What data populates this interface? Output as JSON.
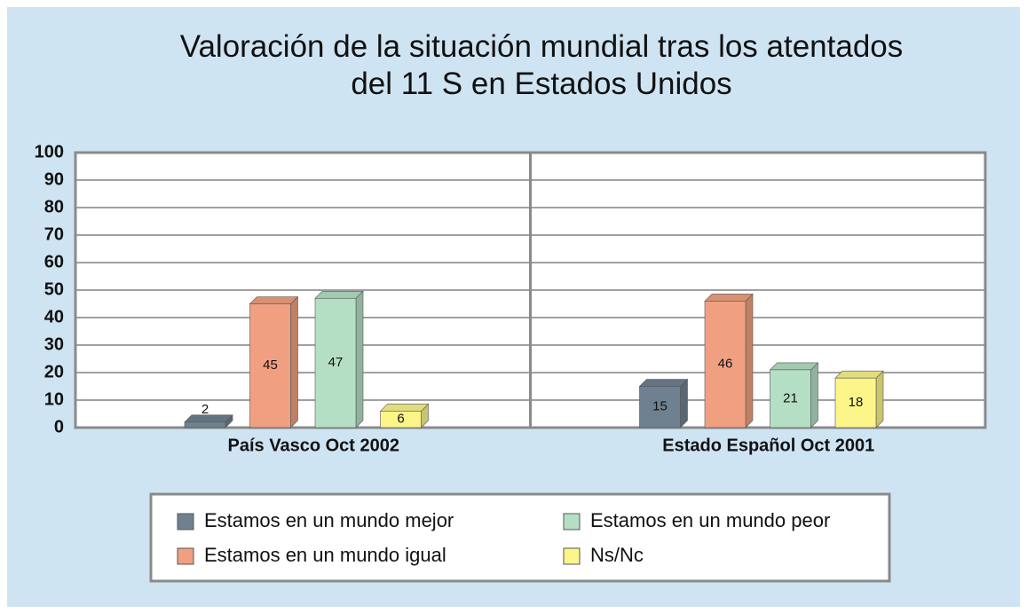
{
  "chart_data": {
    "type": "bar",
    "title": "Valoración de la situación mundial tras los atentados del 11 S en Estados Unidos",
    "categories": [
      "País Vasco Oct 2002",
      "Estado Español Oct 2001"
    ],
    "series": [
      {
        "name": "Estamos en un mundo mejor",
        "color": "#6f8190",
        "values": [
          2,
          15
        ]
      },
      {
        "name": "Estamos en un mundo igual",
        "color": "#f0a080",
        "values": [
          45,
          46
        ]
      },
      {
        "name": "Estamos en un mundo peor",
        "color": "#b5dfc4",
        "values": [
          47,
          21
        ]
      },
      {
        "name": "Ns/Nc",
        "color": "#fbf58a",
        "values": [
          6,
          18
        ]
      }
    ],
    "ylim": [
      0,
      100
    ],
    "yticks": [
      0,
      10,
      20,
      30,
      40,
      50,
      60,
      70,
      80,
      90,
      100
    ],
    "grid": true,
    "legend": "bottom"
  }
}
